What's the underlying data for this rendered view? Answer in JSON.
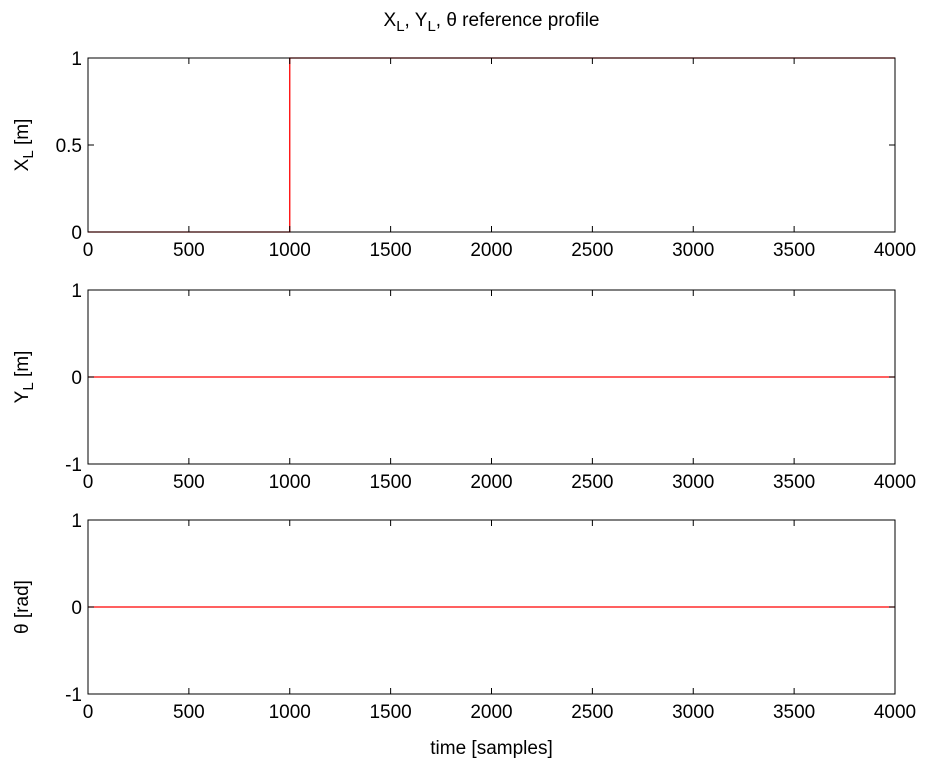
{
  "figure": {
    "title_parts": [
      "X",
      "L",
      ", Y",
      "L",
      ", θ reference profile"
    ]
  },
  "chart_data": [
    {
      "type": "line",
      "ylabel_parts": [
        "X",
        "L",
        " [m]"
      ],
      "xlabel": "",
      "xlim": [
        0,
        4000
      ],
      "ylim": [
        0,
        1
      ],
      "xticks": [
        0,
        500,
        1000,
        1500,
        2000,
        2500,
        3000,
        3500,
        4000
      ],
      "xtick_labels": [
        "0",
        "500",
        "1000",
        "1500",
        "2000",
        "2500",
        "3000",
        "3500",
        "4000"
      ],
      "yticks": [
        0,
        0.5,
        1
      ],
      "ytick_labels": [
        "0",
        "0.5",
        "1"
      ],
      "grid": false,
      "series": [
        {
          "color": "#ff0000",
          "x": [
            0,
            1000,
            1000,
            4000
          ],
          "y": [
            0,
            0,
            1,
            1
          ]
        }
      ]
    },
    {
      "type": "line",
      "ylabel_parts": [
        "Y",
        "L",
        " [m]"
      ],
      "xlabel": "",
      "xlim": [
        0,
        4000
      ],
      "ylim": [
        -1,
        1
      ],
      "xticks": [
        0,
        500,
        1000,
        1500,
        2000,
        2500,
        3000,
        3500,
        4000
      ],
      "xtick_labels": [
        "0",
        "500",
        "1000",
        "1500",
        "2000",
        "2500",
        "3000",
        "3500",
        "4000"
      ],
      "yticks": [
        -1,
        0,
        1
      ],
      "ytick_labels": [
        "-1",
        "0",
        "1"
      ],
      "grid": false,
      "series": [
        {
          "color": "#ff0000",
          "x": [
            0,
            4000
          ],
          "y": [
            0,
            0
          ]
        }
      ]
    },
    {
      "type": "line",
      "ylabel_parts": [
        "θ [rad]"
      ],
      "xlabel": "time [samples]",
      "xlim": [
        0,
        4000
      ],
      "ylim": [
        -1,
        1
      ],
      "xticks": [
        0,
        500,
        1000,
        1500,
        2000,
        2500,
        3000,
        3500,
        4000
      ],
      "xtick_labels": [
        "0",
        "500",
        "1000",
        "1500",
        "2000",
        "2500",
        "3000",
        "3500",
        "4000"
      ],
      "yticks": [
        -1,
        0,
        1
      ],
      "ytick_labels": [
        "-1",
        "0",
        "1"
      ],
      "grid": false,
      "series": [
        {
          "color": "#ff0000",
          "x": [
            0,
            4000
          ],
          "y": [
            0,
            0
          ]
        }
      ]
    }
  ]
}
